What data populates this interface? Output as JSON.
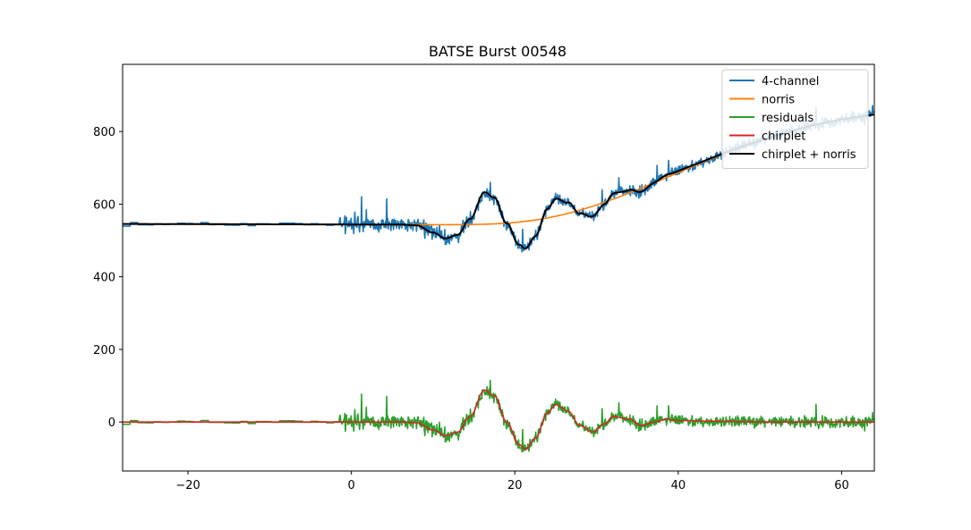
{
  "chart_data": {
    "type": "line",
    "title": "BATSE Burst 00548",
    "xlabel": "",
    "ylabel": "",
    "xlim": [
      -28,
      64
    ],
    "ylim": [
      -135,
      985
    ],
    "xticks": [
      -20,
      0,
      20,
      40,
      60
    ],
    "yticks": [
      0,
      200,
      400,
      600,
      800
    ],
    "grid": false,
    "legend_position": "top-right",
    "series": [
      {
        "name": "4-channel",
        "color": "#1f77b4",
        "model": "norris_plus_chirplet_noisy"
      },
      {
        "name": "norris",
        "color": "#ff7f0e",
        "model": "norris"
      },
      {
        "name": "residuals",
        "color": "#2ca02c",
        "model": "chirplet_noisy"
      },
      {
        "name": "chirplet",
        "color": "#d62728",
        "model": "chirplet"
      },
      {
        "name": "chirplet + norris",
        "color": "#000000",
        "model": "norris_plus_chirplet"
      }
    ],
    "model_params": {
      "background": {
        "intercept": 544,
        "slope_per_s": -0.05
      },
      "norris": {
        "t_start": -1.5,
        "amplitude": 318,
        "rise": 2.2,
        "decay": 34
      },
      "chirplet_points": [
        [
          -28,
          0
        ],
        [
          6,
          0
        ],
        [
          8,
          -2
        ],
        [
          10,
          -22
        ],
        [
          11.5,
          -38
        ],
        [
          13,
          -28
        ],
        [
          14.5,
          15
        ],
        [
          16.3,
          88
        ],
        [
          17.5,
          72
        ],
        [
          19,
          0
        ],
        [
          20.5,
          -62
        ],
        [
          21.3,
          -75
        ],
        [
          22.5,
          -45
        ],
        [
          24,
          25
        ],
        [
          25,
          48
        ],
        [
          26.5,
          30
        ],
        [
          28,
          -10
        ],
        [
          29.5,
          -28
        ],
        [
          31,
          -5
        ],
        [
          32,
          15
        ],
        [
          34,
          8
        ],
        [
          35.5,
          -10
        ],
        [
          37,
          0
        ],
        [
          38.5,
          7
        ],
        [
          40,
          4
        ],
        [
          44,
          2
        ],
        [
          50,
          0
        ],
        [
          64,
          0
        ]
      ],
      "noise_amplitude": {
        "pre_burst": 7,
        "burst": 30,
        "tail": 22
      }
    }
  }
}
